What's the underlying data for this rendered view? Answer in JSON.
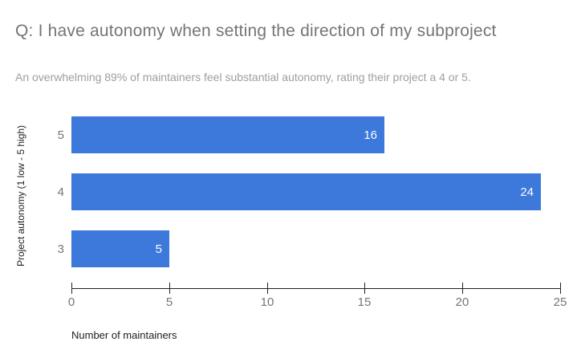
{
  "chart_data": {
    "type": "bar",
    "orientation": "horizontal",
    "title": "Q: I have autonomy when setting the direction of my subproject",
    "subtitle": "An overwhelming 89% of maintainers feel substantial autonomy, rating their project a 4 or 5.",
    "categories": [
      "5",
      "4",
      "3"
    ],
    "values": [
      16,
      24,
      5
    ],
    "xlabel": "Number of maintainers",
    "ylabel": "Project autonomy (1 low - 5 high)",
    "xlim": [
      0,
      25
    ],
    "xticks": [
      0,
      5,
      10,
      15,
      20,
      25
    ],
    "grid": false,
    "legend": "none",
    "bar_color": "#3d78db",
    "value_label_color": "#ffffff",
    "axis_line_color": "#212121",
    "tick_label_color": "#757575",
    "title_color": "#757575",
    "subtitle_color": "#9e9e9e"
  }
}
